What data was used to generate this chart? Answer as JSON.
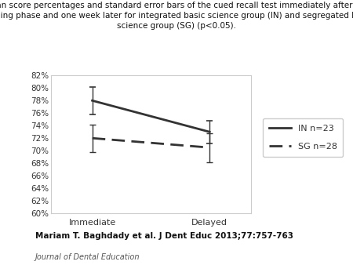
{
  "title_line1": "Mean score percentages and standard error bars of the cued recall test immediately after the",
  "title_line2": "learning phase and one week later for integrated basic science group (IN) and segregated basic",
  "title_line3": "science group (SG) (p<0.05).",
  "x_labels": [
    "Immediate",
    "Delayed"
  ],
  "x_positions": [
    0,
    1
  ],
  "IN_means": [
    78.0,
    73.0
  ],
  "IN_errors": [
    2.2,
    1.8
  ],
  "SG_means": [
    72.0,
    70.5
  ],
  "SG_errors": [
    2.2,
    2.3
  ],
  "ylim": [
    60,
    82
  ],
  "yticks": [
    60,
    62,
    64,
    66,
    68,
    70,
    72,
    74,
    76,
    78,
    80,
    82
  ],
  "ytick_labels": [
    "60%",
    "62%",
    "64%",
    "66%",
    "68%",
    "70%",
    "72%",
    "74%",
    "76%",
    "78%",
    "80%",
    "82%"
  ],
  "legend_IN": "IN n=23",
  "legend_SG": "SG n=28",
  "citation": "Mariam T. Baghdady et al. J Dent Educ 2013;77:757-763",
  "journal": "Journal of Dental Education",
  "line_color": "#333333",
  "background_color": "#ffffff",
  "title_fontsize": 7.5,
  "axis_fontsize": 8,
  "tick_fontsize": 7.5,
  "legend_fontsize": 8,
  "citation_fontsize": 7.5,
  "journal_fontsize": 7
}
